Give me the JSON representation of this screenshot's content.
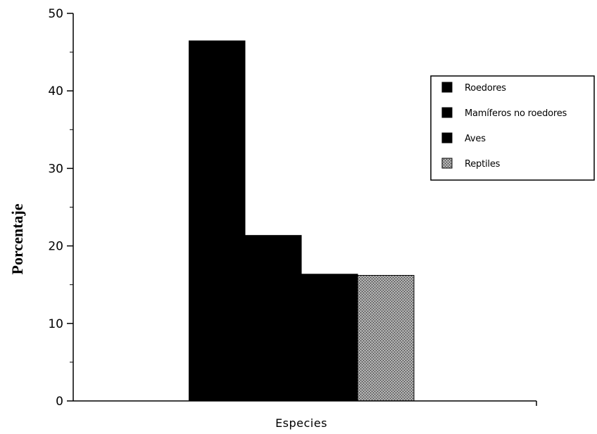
{
  "chart_data": {
    "type": "bar",
    "categories": [
      "Especies"
    ],
    "series": [
      {
        "name": "Roedores",
        "values": [
          46.5
        ],
        "color": "#000000",
        "pattern": "solid"
      },
      {
        "name": "Mamíferos no roedores",
        "values": [
          21.4
        ],
        "color": "#000000",
        "pattern": "solid"
      },
      {
        "name": "Aves",
        "values": [
          16.4
        ],
        "color": "#000000",
        "pattern": "solid"
      },
      {
        "name": "Reptiles",
        "values": [
          16.2
        ],
        "color": "#8c8c8c",
        "pattern": "stipple"
      }
    ],
    "xlabel": "Especies",
    "ylabel": "Porcentaje",
    "ylim": [
      0,
      50
    ],
    "yticks": [
      0,
      10,
      20,
      30,
      40,
      50
    ],
    "grid": false,
    "legend_position": "top-right"
  }
}
